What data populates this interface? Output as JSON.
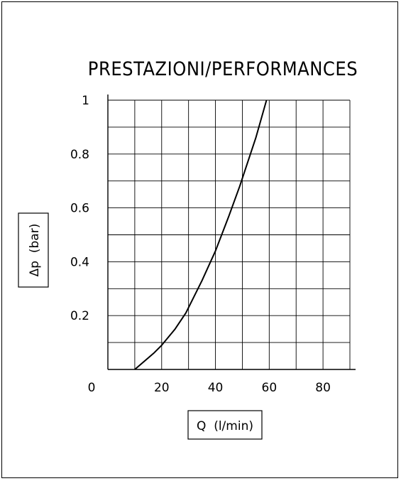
{
  "chart_data": {
    "type": "line",
    "title": "PRESTAZIONI/PERFORMANCES",
    "xlabel": "Q  (l/min)",
    "ylabel": "Δp  (bar)",
    "xlim": [
      0,
      90
    ],
    "ylim": [
      0,
      1
    ],
    "x_ticks": [
      "0",
      "20",
      "40",
      "60",
      "80"
    ],
    "y_ticks": [
      "0.2",
      "0.4",
      "0.6",
      "0.8",
      "1"
    ],
    "grid": true,
    "legend": "none",
    "series": [
      {
        "x": [
          10,
          17,
          20,
          25,
          29,
          35,
          40,
          45,
          49,
          55,
          59
        ],
        "y": [
          0,
          0.06,
          0.09,
          0.15,
          0.21,
          0.33,
          0.44,
          0.57,
          0.68,
          0.86,
          1.0
        ]
      }
    ],
    "line_color": "#000000"
  }
}
